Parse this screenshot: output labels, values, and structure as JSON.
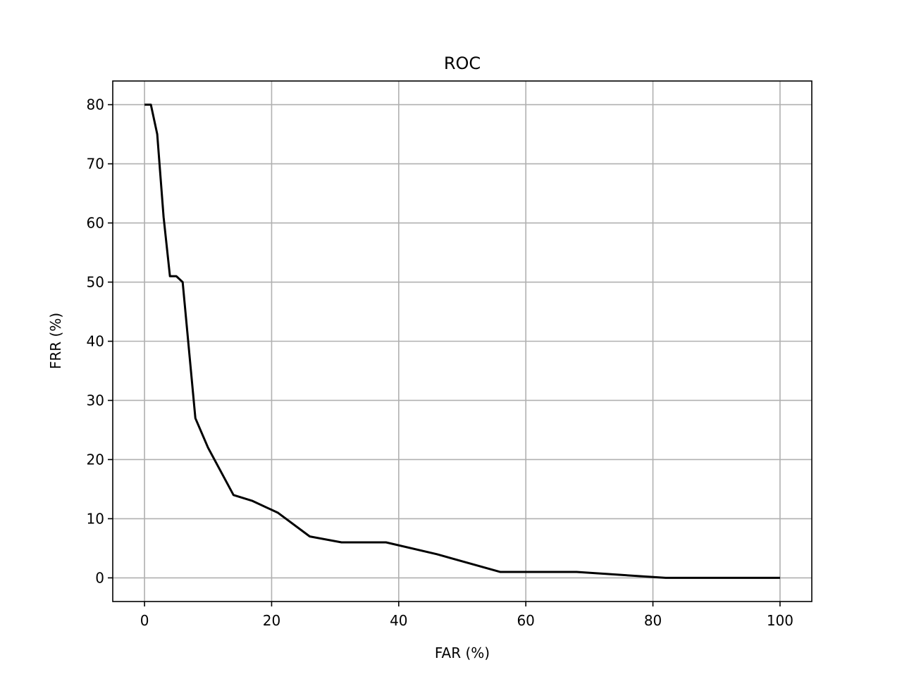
{
  "chart_data": {
    "type": "line",
    "title": "ROC",
    "x_label": "FAR (%)",
    "y_label": "FRR (%)",
    "x": [
      0,
      1,
      2,
      3,
      4,
      5,
      6,
      8,
      10,
      14,
      17,
      21,
      26,
      31,
      38,
      46,
      56,
      68,
      82,
      100
    ],
    "series": [
      {
        "name": "ROC",
        "color": "#000000",
        "values": [
          80,
          80,
          75,
          61,
          51,
          51,
          50,
          27,
          22,
          14,
          13,
          11,
          7,
          6,
          6,
          4,
          1,
          1,
          0,
          0
        ]
      }
    ],
    "xlim": [
      -5,
      105
    ],
    "xticks": [
      0,
      20,
      40,
      60,
      80,
      100
    ],
    "ylim": [
      -4,
      84
    ],
    "yticks": [
      0,
      10,
      20,
      30,
      40,
      50,
      60,
      70,
      80
    ],
    "grid": true
  }
}
